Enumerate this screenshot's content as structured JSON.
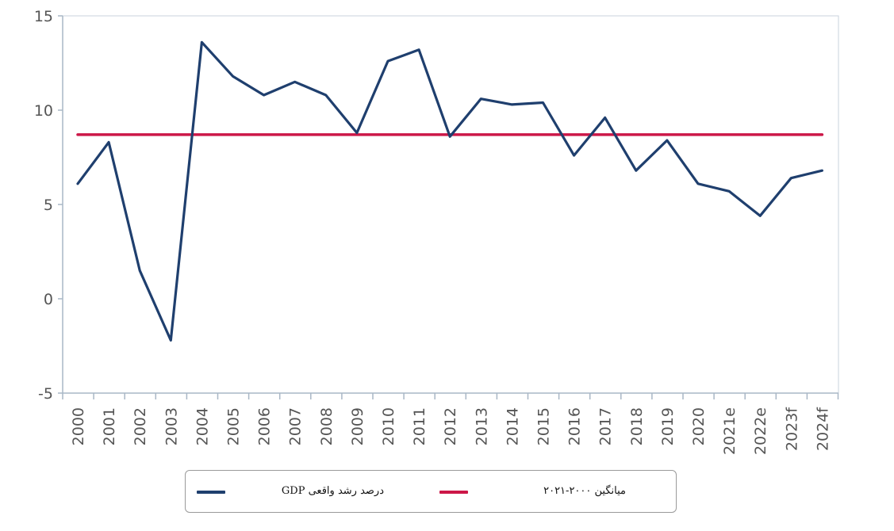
{
  "chart_data": {
    "type": "line",
    "categories": [
      "2000",
      "2001",
      "2002",
      "2003",
      "2004",
      "2005",
      "2006",
      "2007",
      "2008",
      "2009",
      "2010",
      "2011",
      "2012",
      "2013",
      "2014",
      "2015",
      "2016",
      "2017",
      "2018",
      "2019",
      "2020",
      "2021e",
      "2022e",
      "2023f",
      "2024f"
    ],
    "series": [
      {
        "name": "درصد رشد واقعی GDP",
        "color": "#1f3f6e",
        "values": [
          6.1,
          8.3,
          1.5,
          -2.2,
          13.6,
          11.8,
          10.8,
          11.5,
          10.8,
          8.8,
          12.6,
          13.2,
          8.6,
          10.6,
          10.3,
          10.4,
          7.6,
          9.6,
          6.8,
          8.4,
          6.1,
          5.7,
          4.4,
          6.4,
          6.8
        ]
      },
      {
        "name": "میانگین ۲۰۰۰-۲۰۲۱",
        "color": "#cc1748",
        "values": [
          8.7,
          8.7,
          8.7,
          8.7,
          8.7,
          8.7,
          8.7,
          8.7,
          8.7,
          8.7,
          8.7,
          8.7,
          8.7,
          8.7,
          8.7,
          8.7,
          8.7,
          8.7,
          8.7,
          8.7,
          8.7,
          8.7,
          8.7,
          8.7,
          8.7
        ]
      }
    ],
    "y_ticks": [
      15,
      10,
      5,
      0,
      -5
    ],
    "y_tick_labels": [
      "15",
      "10",
      "5",
      "0",
      "-5"
    ],
    "ylim": [
      -5,
      15
    ],
    "title": "",
    "xlabel": "",
    "ylabel": "",
    "grid": false,
    "legend_position": "bottom"
  },
  "colors": {
    "axis": "#a9b7c6",
    "plot_border": "#c9d3de"
  }
}
